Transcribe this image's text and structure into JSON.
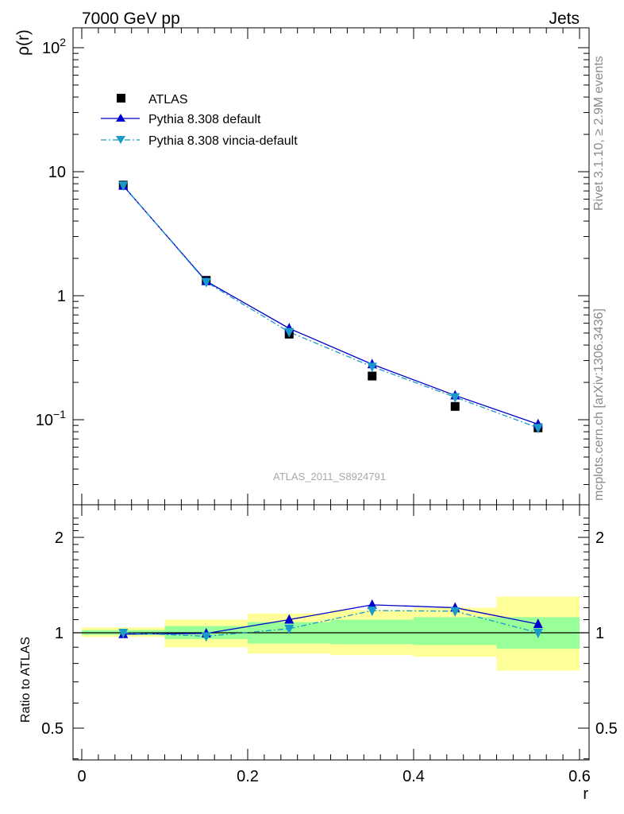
{
  "header": {
    "left": "7000 GeV pp",
    "right": "Jets"
  },
  "side_texts": {
    "upper": "Rivet 3.1.10, ≥ 2.9M events",
    "lower": "mcplots.cern.ch [arXiv:1306.3436]"
  },
  "watermark": "ATLAS_2011_S8924791",
  "colors": {
    "data": "#000000",
    "default": "#0000cc",
    "vincia": "#1a9ac9",
    "band_inner": "#99ff99",
    "band_outer": "#ffff99"
  },
  "chart_data": [
    {
      "type": "line",
      "ylabel": "ρ(r)",
      "yscale": "log",
      "ylim": [
        0.025,
        130
      ],
      "xlim": [
        -0.01,
        0.6
      ],
      "yticks": [
        {
          "value": 100,
          "base": "10",
          "exp": "2"
        },
        {
          "value": 10,
          "base": "10",
          "exp": ""
        },
        {
          "value": 1,
          "base": "1",
          "exp": ""
        },
        {
          "value": 0.1,
          "base": "10",
          "exp": "−1"
        }
      ],
      "legend_position": "top-left",
      "legend": [
        "ATLAS",
        "Pythia 8.308 default",
        "Pythia 8.308 vincia-default"
      ],
      "x": [
        0.05,
        0.15,
        0.25,
        0.35,
        0.45,
        0.55
      ],
      "series": [
        {
          "name": "ATLAS",
          "marker": "square",
          "values": [
            7.8,
            1.33,
            0.49,
            0.225,
            0.128,
            0.086
          ]
        },
        {
          "name": "Pythia 8.308 default",
          "marker": "triangle-up",
          "values": [
            7.7,
            1.31,
            0.545,
            0.28,
            0.157,
            0.092
          ]
        },
        {
          "name": "Pythia 8.308 vincia-default",
          "marker": "triangle-down",
          "values": [
            7.75,
            1.29,
            0.51,
            0.268,
            0.152,
            0.086
          ]
        }
      ]
    },
    {
      "type": "line",
      "ylabel": "Ratio to ATLAS",
      "xlabel": "r",
      "ylim": [
        0.39,
        2.33
      ],
      "xlim": [
        -0.01,
        0.6
      ],
      "yticks": [
        "0.5",
        "1",
        "2"
      ],
      "xticks": [
        "0",
        "0.2",
        "0.4",
        "0.6"
      ],
      "reference": 1,
      "x": [
        0.05,
        0.15,
        0.25,
        0.35,
        0.45,
        0.55
      ],
      "bins": [
        [
          0.0,
          0.1
        ],
        [
          0.1,
          0.2
        ],
        [
          0.2,
          0.3
        ],
        [
          0.3,
          0.4
        ],
        [
          0.4,
          0.5
        ],
        [
          0.5,
          0.6
        ]
      ],
      "band_inner": [
        [
          0.985,
          1.02
        ],
        [
          0.955,
          1.05
        ],
        [
          0.925,
          1.08
        ],
        [
          0.92,
          1.1
        ],
        [
          0.915,
          1.12
        ],
        [
          0.89,
          1.12
        ]
      ],
      "band_outer": [
        [
          0.97,
          1.04
        ],
        [
          0.9,
          1.1
        ],
        [
          0.86,
          1.15
        ],
        [
          0.85,
          1.18
        ],
        [
          0.84,
          1.2
        ],
        [
          0.76,
          1.3
        ]
      ],
      "series": [
        {
          "name": "Pythia 8.308 default",
          "values": [
            0.99,
            0.995,
            1.1,
            1.225,
            1.2,
            1.065
          ]
        },
        {
          "name": "Pythia 8.308 vincia-default",
          "values": [
            1.0,
            0.975,
            1.03,
            1.175,
            1.17,
            1.0
          ]
        }
      ]
    }
  ]
}
